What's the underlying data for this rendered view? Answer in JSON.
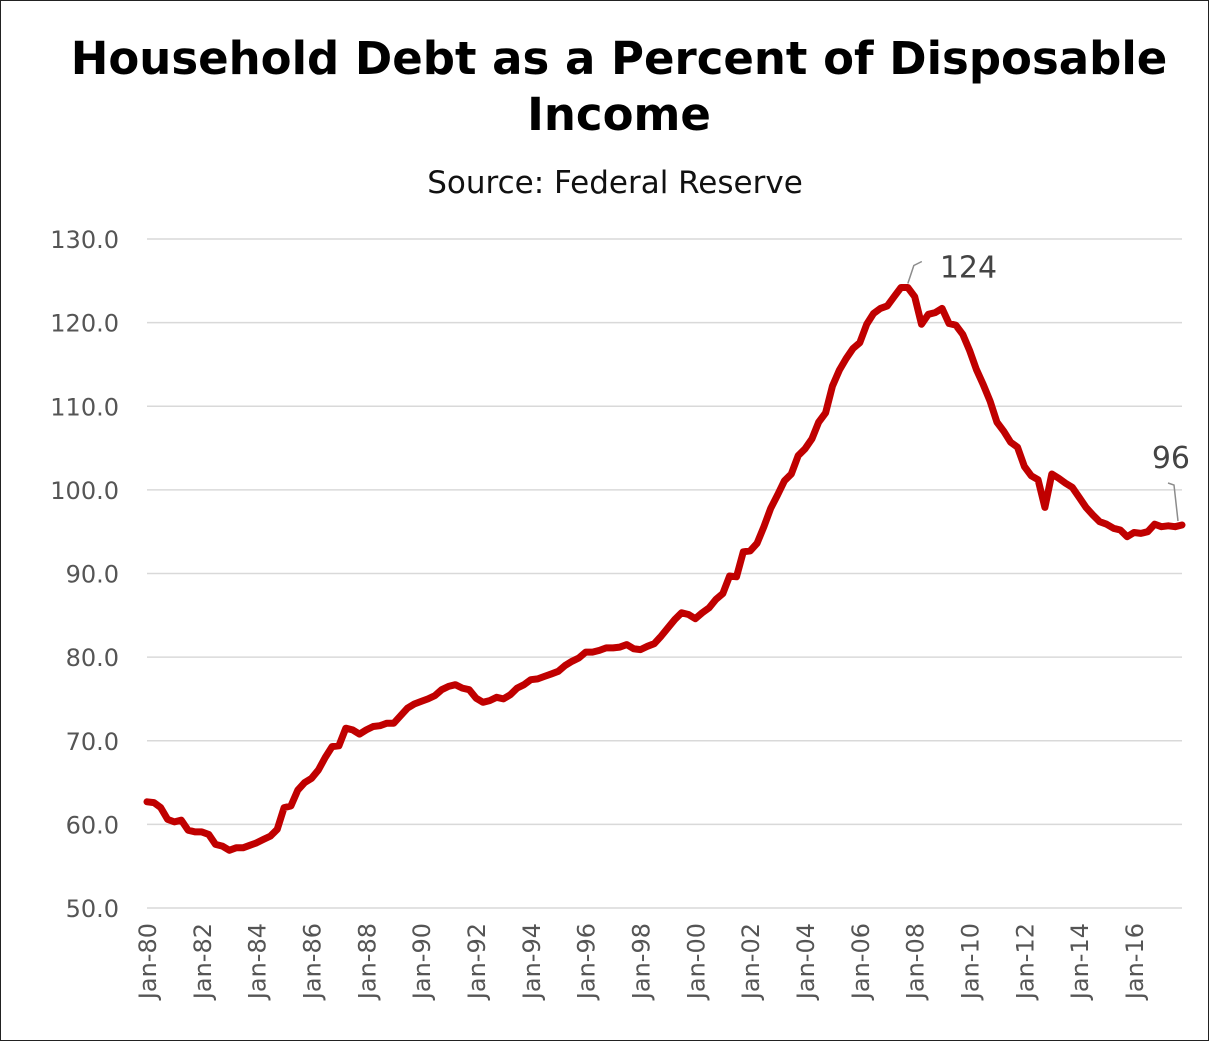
{
  "chart_data": {
    "type": "line",
    "title": "Household Debt as a Percent of Disposable Income",
    "subtitle": "Source: Federal Reserve",
    "xlabel": "",
    "ylabel": "",
    "ylim": [
      50,
      130
    ],
    "yticks": [
      "50.0",
      "60.0",
      "70.0",
      "80.0",
      "90.0",
      "100.0",
      "110.0",
      "120.0",
      "130.0"
    ],
    "xticks": [
      "Jan-80",
      "Jan-82",
      "Jan-84",
      "Jan-86",
      "Jan-88",
      "Jan-90",
      "Jan-92",
      "Jan-94",
      "Jan-96",
      "Jan-98",
      "Jan-00",
      "Jan-02",
      "Jan-04",
      "Jan-06",
      "Jan-08",
      "Jan-10",
      "Jan-12",
      "Jan-14",
      "Jan-16"
    ],
    "xlim": [
      "1980-01",
      "2017-10"
    ],
    "grid": "horizontal",
    "legend": "none",
    "colors": {
      "line": "#c00000",
      "grid": "#d9d9d9"
    },
    "series": [
      {
        "points": [
          [
            "1980-01",
            62.7
          ],
          [
            "1980-04",
            62.6
          ],
          [
            "1980-07",
            62.0
          ],
          [
            "1980-10",
            60.6
          ],
          [
            "1981-01",
            60.3
          ],
          [
            "1981-04",
            60.5
          ],
          [
            "1981-07",
            59.3
          ],
          [
            "1981-10",
            59.1
          ],
          [
            "1982-01",
            59.1
          ],
          [
            "1982-04",
            58.8
          ],
          [
            "1982-07",
            57.6
          ],
          [
            "1982-10",
            57.4
          ],
          [
            "1983-01",
            56.9
          ],
          [
            "1983-04",
            57.2
          ],
          [
            "1983-07",
            57.2
          ],
          [
            "1983-10",
            57.5
          ],
          [
            "1984-01",
            57.8
          ],
          [
            "1984-04",
            58.2
          ],
          [
            "1984-07",
            58.6
          ],
          [
            "1984-10",
            59.4
          ],
          [
            "1985-01",
            62.0
          ],
          [
            "1985-04",
            62.2
          ],
          [
            "1985-07",
            64.1
          ],
          [
            "1985-10",
            65.0
          ],
          [
            "1986-01",
            65.5
          ],
          [
            "1986-04",
            66.5
          ],
          [
            "1986-07",
            68.0
          ],
          [
            "1986-10",
            69.3
          ],
          [
            "1987-01",
            69.4
          ],
          [
            "1987-04",
            71.5
          ],
          [
            "1987-07",
            71.3
          ],
          [
            "1987-10",
            70.8
          ],
          [
            "1988-01",
            71.3
          ],
          [
            "1988-04",
            71.7
          ],
          [
            "1988-07",
            71.8
          ],
          [
            "1988-10",
            72.1
          ],
          [
            "1989-01",
            72.1
          ],
          [
            "1989-04",
            73.0
          ],
          [
            "1989-07",
            73.9
          ],
          [
            "1989-10",
            74.4
          ],
          [
            "1990-01",
            74.7
          ],
          [
            "1990-04",
            75.0
          ],
          [
            "1990-07",
            75.4
          ],
          [
            "1990-10",
            76.1
          ],
          [
            "1991-01",
            76.5
          ],
          [
            "1991-04",
            76.7
          ],
          [
            "1991-07",
            76.3
          ],
          [
            "1991-10",
            76.1
          ],
          [
            "1992-01",
            75.1
          ],
          [
            "1992-04",
            74.6
          ],
          [
            "1992-07",
            74.8
          ],
          [
            "1992-10",
            75.2
          ],
          [
            "1993-01",
            75.0
          ],
          [
            "1993-04",
            75.5
          ],
          [
            "1993-07",
            76.3
          ],
          [
            "1993-10",
            76.7
          ],
          [
            "1994-01",
            77.3
          ],
          [
            "1994-04",
            77.4
          ],
          [
            "1994-07",
            77.7
          ],
          [
            "1994-10",
            78.0
          ],
          [
            "1995-01",
            78.3
          ],
          [
            "1995-04",
            79.0
          ],
          [
            "1995-07",
            79.5
          ],
          [
            "1995-10",
            79.9
          ],
          [
            "1996-01",
            80.6
          ],
          [
            "1996-04",
            80.6
          ],
          [
            "1996-07",
            80.8
          ],
          [
            "1996-10",
            81.1
          ],
          [
            "1997-01",
            81.1
          ],
          [
            "1997-04",
            81.2
          ],
          [
            "1997-07",
            81.5
          ],
          [
            "1997-10",
            81.0
          ],
          [
            "1998-01",
            80.9
          ],
          [
            "1998-04",
            81.3
          ],
          [
            "1998-07",
            81.6
          ],
          [
            "1998-10",
            82.5
          ],
          [
            "1999-01",
            83.5
          ],
          [
            "1999-04",
            84.5
          ],
          [
            "1999-07",
            85.3
          ],
          [
            "1999-10",
            85.1
          ],
          [
            "2000-01",
            84.6
          ],
          [
            "2000-04",
            85.3
          ],
          [
            "2000-07",
            85.9
          ],
          [
            "2000-10",
            86.9
          ],
          [
            "2001-01",
            87.6
          ],
          [
            "2001-04",
            89.7
          ],
          [
            "2001-07",
            89.6
          ],
          [
            "2001-10",
            92.6
          ],
          [
            "2002-01",
            92.7
          ],
          [
            "2002-04",
            93.6
          ],
          [
            "2002-07",
            95.6
          ],
          [
            "2002-10",
            97.8
          ],
          [
            "2003-01",
            99.4
          ],
          [
            "2003-04",
            101.1
          ],
          [
            "2003-07",
            101.9
          ],
          [
            "2003-10",
            104.1
          ],
          [
            "2004-01",
            104.9
          ],
          [
            "2004-04",
            106.1
          ],
          [
            "2004-07",
            108.1
          ],
          [
            "2004-10",
            109.2
          ],
          [
            "2005-01",
            112.4
          ],
          [
            "2005-04",
            114.3
          ],
          [
            "2005-07",
            115.7
          ],
          [
            "2005-10",
            116.9
          ],
          [
            "2006-01",
            117.6
          ],
          [
            "2006-04",
            119.8
          ],
          [
            "2006-07",
            121.1
          ],
          [
            "2006-10",
            121.7
          ],
          [
            "2007-01",
            122.0
          ],
          [
            "2007-04",
            123.1
          ],
          [
            "2007-07",
            124.2
          ],
          [
            "2007-10",
            124.2
          ],
          [
            "2008-01",
            123.1
          ],
          [
            "2008-04",
            119.8
          ],
          [
            "2008-07",
            121.0
          ],
          [
            "2008-10",
            121.2
          ],
          [
            "2009-01",
            121.7
          ],
          [
            "2009-04",
            119.9
          ],
          [
            "2009-07",
            119.7
          ],
          [
            "2009-10",
            118.6
          ],
          [
            "2010-01",
            116.7
          ],
          [
            "2010-04",
            114.4
          ],
          [
            "2010-07",
            112.6
          ],
          [
            "2010-10",
            110.6
          ],
          [
            "2011-01",
            108.1
          ],
          [
            "2011-04",
            107.0
          ],
          [
            "2011-07",
            105.7
          ],
          [
            "2011-10",
            105.1
          ],
          [
            "2012-01",
            102.8
          ],
          [
            "2012-04",
            101.7
          ],
          [
            "2012-07",
            101.2
          ],
          [
            "2012-10",
            97.9
          ],
          [
            "2013-01",
            101.9
          ],
          [
            "2013-04",
            101.4
          ],
          [
            "2013-07",
            100.8
          ],
          [
            "2013-10",
            100.3
          ],
          [
            "2014-01",
            99.1
          ],
          [
            "2014-04",
            97.9
          ],
          [
            "2014-07",
            97.0
          ],
          [
            "2014-10",
            96.2
          ],
          [
            "2015-01",
            95.9
          ],
          [
            "2015-04",
            95.4
          ],
          [
            "2015-07",
            95.2
          ],
          [
            "2015-10",
            94.4
          ],
          [
            "2016-01",
            94.9
          ],
          [
            "2016-04",
            94.8
          ],
          [
            "2016-07",
            95.0
          ],
          [
            "2016-10",
            95.9
          ],
          [
            "2017-01",
            95.6
          ],
          [
            "2017-04",
            95.7
          ],
          [
            "2017-07",
            95.6
          ],
          [
            "2017-10",
            95.8
          ]
        ]
      }
    ],
    "annotations": [
      {
        "text": "124",
        "x": "2007-10",
        "y": 124.2
      },
      {
        "text": "96",
        "x": "2017-10",
        "y": 95.8
      }
    ]
  }
}
